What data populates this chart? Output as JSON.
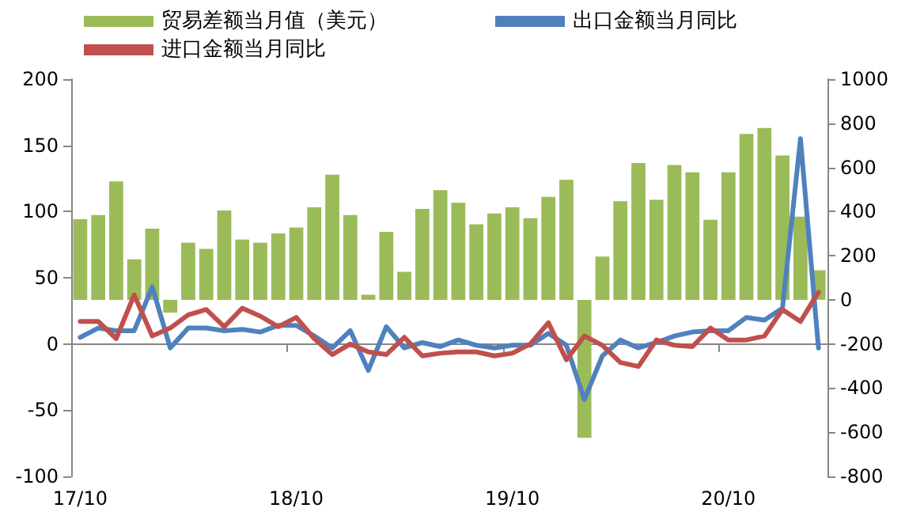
{
  "chart_data": {
    "type": "bar",
    "categories": [
      "17/10",
      null,
      null,
      null,
      null,
      null,
      null,
      null,
      null,
      null,
      null,
      null,
      "18/10",
      null,
      null,
      null,
      null,
      null,
      null,
      null,
      null,
      null,
      null,
      null,
      "19/10",
      null,
      null,
      null,
      null,
      null,
      null,
      null,
      null,
      null,
      null,
      null,
      "20/10",
      null,
      null,
      null,
      null,
      null
    ],
    "series": [
      {
        "name": "贸易差额当月值（美元）",
        "axis": "y2",
        "color": "#9bbb59",
        "values": [
          365,
          384,
          537,
          183,
          322,
          -58,
          259,
          231,
          405,
          273,
          259,
          301,
          328,
          419,
          567,
          384,
          23,
          308,
          127,
          412,
          497,
          440,
          342,
          391,
          419,
          370,
          467,
          544,
          -625,
          196,
          447,
          620,
          453,
          611,
          578,
          363,
          578,
          752,
          779,
          654,
          377,
          134
        ]
      },
      {
        "name": "出口金额当月同比",
        "type": "line",
        "color": "#4f81bd",
        "values": [
          5,
          12,
          10,
          10,
          43,
          -3,
          12,
          12,
          10,
          11,
          9,
          14,
          14,
          6,
          -3,
          10,
          -20,
          13,
          -3,
          1,
          -2,
          3,
          -1,
          -3,
          -1,
          -1,
          8,
          -1,
          -42,
          -9,
          3,
          -3,
          1,
          6,
          9,
          10,
          10,
          20,
          18,
          27,
          155,
          -3
        ]
      },
      {
        "name": "进口金额当月同比",
        "type": "line",
        "color": "#c0504d",
        "values": [
          17,
          17,
          4,
          37,
          6,
          12,
          22,
          26,
          13,
          27,
          21,
          13,
          20,
          4,
          -8,
          0,
          -6,
          -8,
          5,
          -9,
          -7,
          -6,
          -6,
          -9,
          -7,
          0,
          16,
          -12,
          6,
          -1,
          -14,
          -17,
          3,
          -1,
          -2,
          12,
          3,
          3,
          6,
          26,
          17,
          39
        ]
      }
    ],
    "ylim": [
      -100,
      200
    ],
    "yticks": [
      -100,
      -50,
      0,
      50,
      100,
      150,
      200
    ],
    "y2lim": [
      -800,
      1000
    ],
    "y2ticks": [
      -800,
      -600,
      -400,
      -200,
      0,
      200,
      400,
      600,
      800,
      1000
    ],
    "legend": "top",
    "marker": "none",
    "line_style": "solid"
  }
}
